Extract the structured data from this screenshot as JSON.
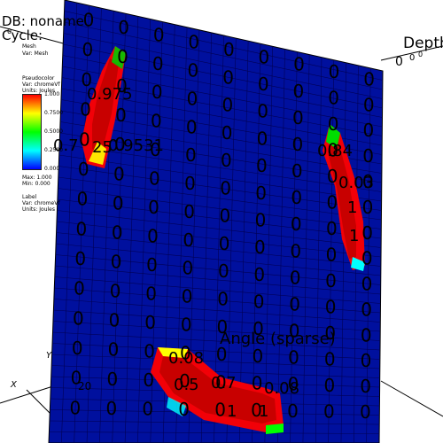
{
  "db_line": "DB: noname",
  "cycle_line": "Cycle:",
  "mesh_block": [
    "Mesh",
    "Var: Mesh"
  ],
  "pseudocolor": {
    "title": "Pseudocolor",
    "var": "Var: chromeVf",
    "units": "Units: Joules",
    "ticks": [
      "1.000",
      "0.7500",
      "0.5000",
      "0.2500",
      "0.000"
    ],
    "max": "Max: 1.000",
    "min": "Min: 0.000"
  },
  "label_block": {
    "title": "Label",
    "var": "Var: chromeVf",
    "units": "Units: Joules"
  },
  "axes": {
    "depth_label": "Depth",
    "x_label": "X",
    "y_label": "Y",
    "z_tick": "20",
    "center_label": "Angle (sparse)"
  },
  "colors": {
    "mesh_blue": "#00109e",
    "grid_line": "#000055",
    "hot": "#c80000"
  },
  "cell_value_label": "0",
  "highlight_labels": [
    "0.975",
    "0.7",
    "0.9531",
    "25",
    "0.84",
    "0.03",
    "1",
    "1",
    "0.08",
    "0.5",
    "0.7",
    "0.08",
    "1",
    "1"
  ],
  "axis_tick_labels": [
    "0",
    "0",
    "0",
    "0"
  ]
}
